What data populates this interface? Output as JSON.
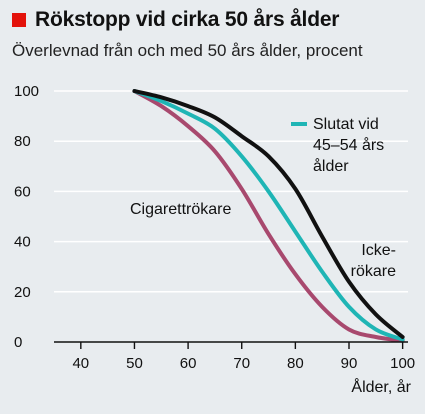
{
  "title": "Rökstopp vid cirka 50 års ålder",
  "subtitle": "Överlevnad från och med 50 års ålder, procent",
  "colors": {
    "title_square": "#e3120b",
    "background": "#e8ecef",
    "grid": "#ffffff",
    "icke_rokare": "#111111",
    "slutat": "#1fb5b5",
    "cigarettrokare": "#a8496e"
  },
  "chart_data": {
    "type": "line",
    "xlabel": "Ålder, år",
    "ylabel": "",
    "xlim": [
      35,
      101
    ],
    "ylim": [
      0,
      104
    ],
    "x_ticks": [
      40,
      50,
      60,
      70,
      80,
      90,
      100
    ],
    "y_ticks": [
      0,
      20,
      40,
      60,
      80,
      100
    ],
    "grid": true,
    "series": [
      {
        "name": "Icke-rökare",
        "label_lines": [
          "Icke-",
          "rökare"
        ],
        "color": "#111111",
        "x": [
          50,
          55,
          60,
          65,
          70,
          75,
          80,
          85,
          90,
          95,
          100
        ],
        "y": [
          100,
          97.5,
          94,
          89.5,
          82,
          74,
          61,
          42,
          24,
          11,
          2
        ]
      },
      {
        "name": "Slutat vid 45–54 års ålder",
        "label_lines": [
          "Slutat vid",
          "45–54 års",
          "ålder"
        ],
        "color": "#1fb5b5",
        "x": [
          50,
          55,
          60,
          65,
          70,
          75,
          80,
          85,
          90,
          95,
          100
        ],
        "y": [
          100,
          96,
          91,
          85,
          74,
          60,
          44,
          28,
          14,
          5,
          1
        ]
      },
      {
        "name": "Cigarettrökare",
        "label_lines": [
          "Cigarettrökare"
        ],
        "color": "#a8496e",
        "x": [
          50,
          55,
          60,
          65,
          70,
          75,
          80,
          85,
          90,
          95,
          100
        ],
        "y": [
          100,
          94,
          86,
          76,
          61,
          43,
          27,
          14,
          5,
          2,
          0.5
        ]
      }
    ]
  }
}
